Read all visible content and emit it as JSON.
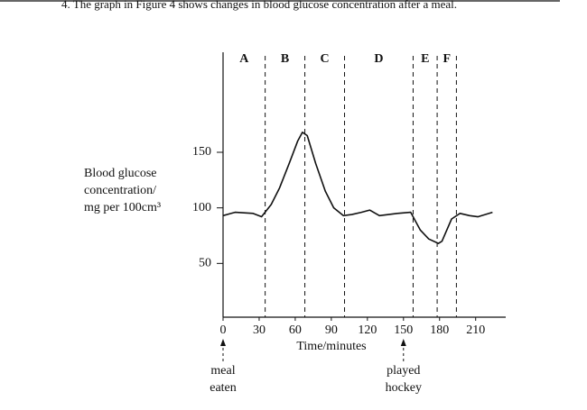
{
  "chart_data": {
    "type": "line",
    "title": "4.  The graph in Figure 4 shows changes in blood glucose concentration after a meal.",
    "ylabel": [
      "Blood glucose",
      "concentration/",
      "mg per 100cm³"
    ],
    "xlabel": "Time/minutes",
    "x": [
      0,
      10,
      25,
      32,
      40,
      47,
      55,
      62,
      66,
      70,
      77,
      85,
      92,
      100,
      107,
      115,
      122,
      130,
      145,
      156,
      164,
      171,
      179,
      182,
      190,
      197,
      205,
      212,
      224
    ],
    "series": [
      {
        "color": "#111111",
        "values": [
          93,
          96,
          95,
          92,
          103,
          118,
          140,
          160,
          168,
          165,
          140,
          115,
          100,
          93,
          94,
          96,
          98,
          93,
          95,
          96,
          80,
          72,
          68,
          70,
          90,
          95,
          93,
          92,
          96
        ]
      }
    ],
    "xlim": [
      0,
      235
    ],
    "ylim": [
      0,
      240
    ],
    "xticks": [
      0,
      30,
      60,
      90,
      120,
      150,
      180,
      210
    ],
    "yticks": [
      50,
      100,
      150
    ],
    "boundaries": [
      35,
      68,
      101,
      158,
      178,
      194
    ],
    "regions": [
      "A",
      "B",
      "C",
      "D",
      "E",
      "F"
    ],
    "annotations": [
      {
        "x": 0,
        "text": [
          "meal",
          "eaten"
        ]
      },
      {
        "x": 150,
        "text": [
          "played",
          "hockey"
        ]
      }
    ]
  }
}
